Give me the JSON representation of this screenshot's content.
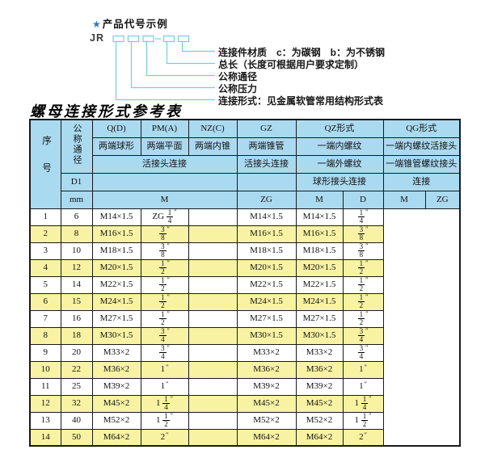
{
  "colors": {
    "header_bg": "#aadaf0",
    "row_alt_bg": "#f8f2a3",
    "leader_line": "#74cde2",
    "star": "#2a7cc2",
    "border": "#1a1a1a"
  },
  "diagram": {
    "star": "★",
    "heading": "产品代号示例",
    "code_prefix": "JR",
    "labels": [
      "连接件材质　c：为碳钢　b：为不锈钢",
      "总长（长度可根据用户要求定制）",
      "公称通径",
      "公称压力",
      "连接形式：见金属软管常用结构形式表"
    ]
  },
  "table": {
    "title": "螺母连接形式参考表",
    "inch_mark": "″",
    "header": {
      "serial": "序号",
      "dn": "公称通径",
      "d1": "D1",
      "unit": "mm",
      "forms": [
        "Q(D)",
        "PM(A)",
        "NZ(C)",
        "GZ",
        "QZ形式",
        "QG形式"
      ],
      "ends": [
        "两端球形",
        "两端平面",
        "两端内锥",
        "两端锥管",
        "一端内螺纹",
        "一端内螺纹活接头"
      ],
      "connections": [
        "活接头连接",
        "活接头连接",
        "一端外螺纹",
        "一端锥管螺纹接头"
      ],
      "joint": [
        "球形接头连接",
        "连接"
      ],
      "units_row": [
        "M",
        "ZG",
        "M",
        "D",
        "M",
        "ZG"
      ]
    },
    "rows": [
      [
        "1",
        "6",
        "M14×1.5",
        "ZG 1/4",
        "",
        "M14×1.5",
        "M14×1.5",
        "1/4"
      ],
      [
        "2",
        "8",
        "M16×1.5",
        "3/8",
        "",
        "M16×1.5",
        "M16×1.5",
        "3/8"
      ],
      [
        "3",
        "10",
        "M18×1.5",
        "3/8",
        "",
        "M18×1.5",
        "M18×1.5",
        "3/8"
      ],
      [
        "4",
        "12",
        "M20×1.5",
        "1/2",
        "",
        "M20×1.5",
        "M20×1.5",
        "1/2"
      ],
      [
        "5",
        "14",
        "M22×1.5",
        "1/2",
        "",
        "M22×1.5",
        "M22×1.5",
        "1/2"
      ],
      [
        "6",
        "15",
        "M24×1.5",
        "1/2",
        "",
        "M24×1.5",
        "M24×1.5",
        "1/2"
      ],
      [
        "7",
        "16",
        "M27×1.5",
        "1/2",
        "",
        "M27×1.5",
        "M27×1.5",
        "1/2"
      ],
      [
        "8",
        "18",
        "M30×1.5",
        "3/4",
        "",
        "M30×1.5",
        "M30×1.5",
        "3/4"
      ],
      [
        "9",
        "20",
        "M33×2",
        "3/4",
        "",
        "M33×2",
        "M33×2",
        "3/4"
      ],
      [
        "10",
        "22",
        "M36×2",
        "1",
        "",
        "M36×2",
        "M36×2",
        "1"
      ],
      [
        "11",
        "25",
        "M39×2",
        "1",
        "",
        "M39×2",
        "M39×2",
        "1"
      ],
      [
        "12",
        "32",
        "M45×2",
        "1 1/4",
        "",
        "M45×2",
        "M45×2",
        "1 1/4"
      ],
      [
        "13",
        "40",
        "M52×2",
        "1 1/2",
        "",
        "M52×2",
        "M52×2",
        "1 1/2"
      ],
      [
        "14",
        "50",
        "M64×2",
        "2",
        "",
        "M64×2",
        "M64×2",
        "2"
      ]
    ]
  }
}
